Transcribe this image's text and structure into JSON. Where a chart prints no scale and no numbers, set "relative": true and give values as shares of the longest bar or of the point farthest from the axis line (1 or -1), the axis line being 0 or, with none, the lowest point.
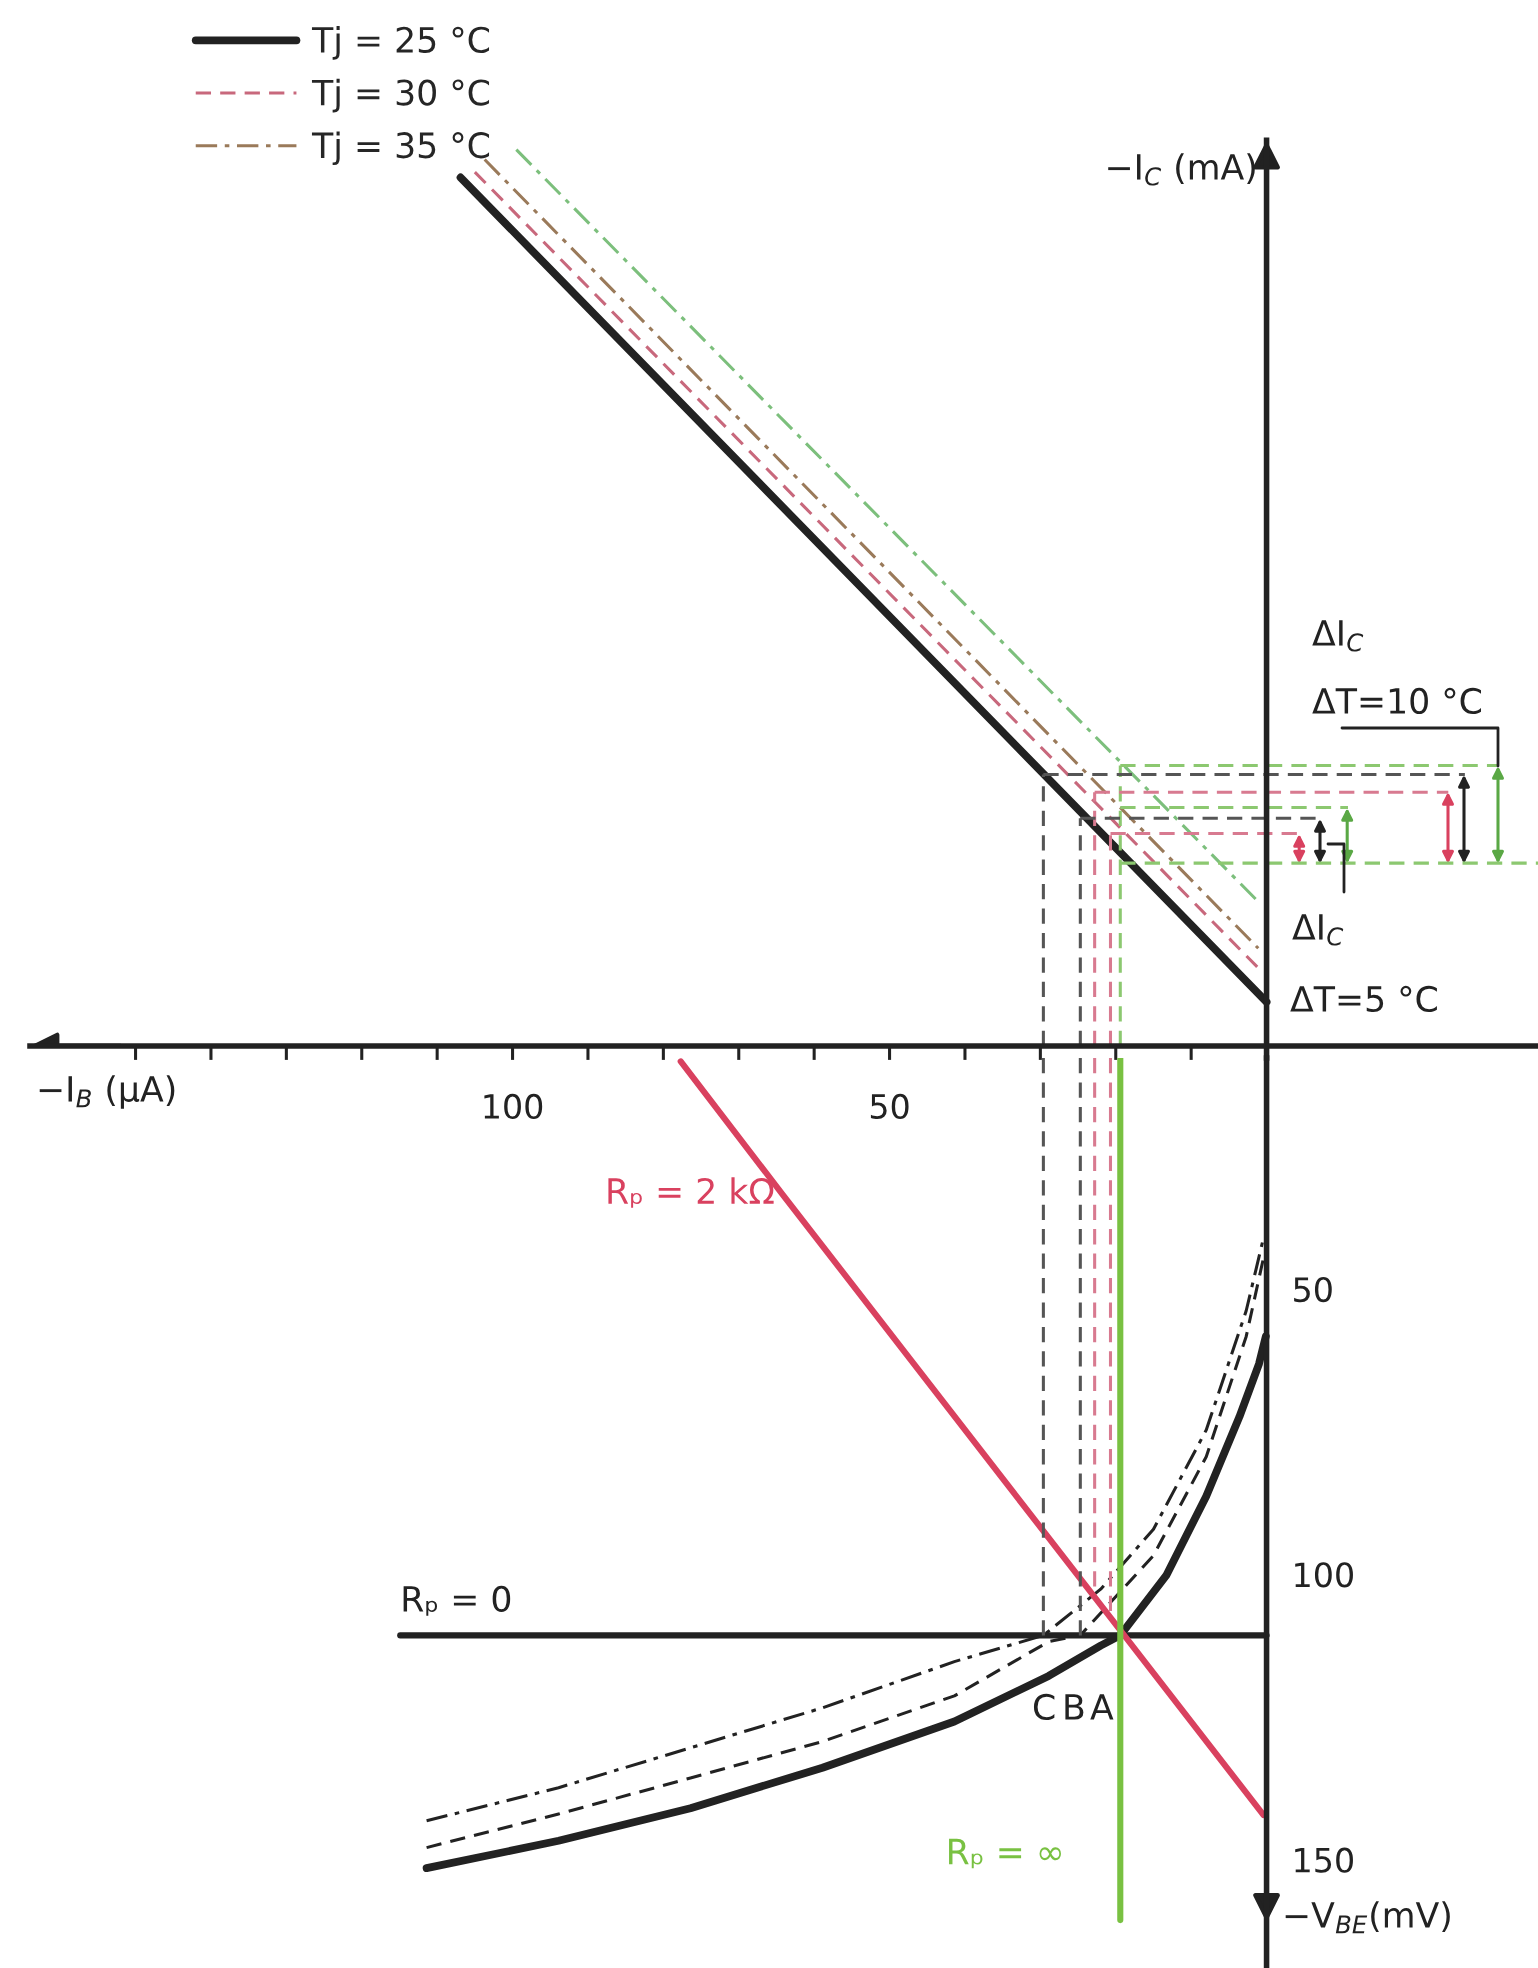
{
  "chart_data": [
    {
      "type": "line",
      "relative": true,
      "xlabel": "−I$_{B}$ (μA)",
      "ylabel": "−I$_{C}$ (mA)",
      "xlim": [
        164,
        -36
      ],
      "xticks": [
        {
          "value": 150,
          "label": null
        },
        {
          "value": 140,
          "label": null
        },
        {
          "value": 130,
          "label": null
        },
        {
          "value": 120,
          "label": null
        },
        {
          "value": 110,
          "label": null
        },
        100,
        {
          "value": 90,
          "label": null
        },
        {
          "value": 80,
          "label": null
        },
        {
          "value": 70,
          "label": null
        },
        {
          "value": 60,
          "label": null
        },
        50,
        {
          "value": 40,
          "label": null
        },
        {
          "value": 30,
          "label": null
        },
        {
          "value": 20,
          "label": null
        },
        {
          "value": 10,
          "label": null
        }
      ],
      "legend": "top left",
      "series": [
        {
          "name": "Tj = 25 °C",
          "color": "#222222",
          "line_style": "solid",
          "x": [
            106.9,
            0
          ],
          "values": [
            0.969,
            0.049
          ]
        },
        {
          "name": "Tj = 30 °C",
          "color": "#c8687c",
          "line_style": "dashed",
          "x": [
            105.0,
            1.1
          ],
          "values": [
            0.975,
            0.087
          ]
        },
        {
          "name": "Tj = 35 °C",
          "color": "#9a7a5a",
          "line_style": "dashdot",
          "x": [
            103.7,
            1.1
          ],
          "values": [
            0.989,
            0.109
          ]
        },
        {
          "color": "#7cbf7c",
          "line_style": "dashdot",
          "x": [
            99.5,
            1.1
          ],
          "values": [
            1.0,
            0.161
          ]
        },
        {
          "color": "#555555",
          "line_style": "dashed",
          "x": [
            29.6,
            29.6
          ],
          "values": [
            0,
            0.303
          ]
        },
        {
          "color": "#555555",
          "line_style": "dashed",
          "x": [
            24.7,
            24.7
          ],
          "values": [
            0,
            0.254
          ]
        },
        {
          "color": "#d87a90",
          "line_style": "dashed",
          "x": [
            22.8,
            22.8
          ],
          "values": [
            0,
            0.283
          ]
        },
        {
          "color": "#d87a90",
          "line_style": "dashed",
          "x": [
            20.7,
            20.7
          ],
          "values": [
            0,
            0.237
          ]
        },
        {
          "color": "#8cc870",
          "line_style": "dashed",
          "x": [
            19.4,
            19.4
          ],
          "values": [
            0,
            0.313
          ]
        },
        {
          "color": "#8cc870",
          "line_style": "dashed",
          "x": [
            19.4,
            -30.8
          ],
          "values": [
            0.313,
            0.313
          ]
        },
        {
          "color": "#555555",
          "line_style": "dashed",
          "x": [
            29.6,
            -26.3
          ],
          "values": [
            0.303,
            0.303
          ]
        },
        {
          "color": "#d87a90",
          "line_style": "dashed",
          "x": [
            22.8,
            -24.1
          ],
          "values": [
            0.283,
            0.283
          ]
        },
        {
          "color": "#8cc870",
          "line_style": "dashed",
          "x": [
            19.4,
            -10.8
          ],
          "values": [
            0.266,
            0.266
          ]
        },
        {
          "color": "#555555",
          "line_style": "dashed",
          "x": [
            24.7,
            -7.2
          ],
          "values": [
            0.254,
            0.254
          ]
        },
        {
          "color": "#d87a90",
          "line_style": "dashed",
          "x": [
            20.7,
            -4.4
          ],
          "values": [
            0.237,
            0.237
          ]
        },
        {
          "color": "#8cc870",
          "line_style": "dashed",
          "x": [
            19.4,
            -36
          ],
          "values": [
            0.204,
            0.204
          ]
        }
      ],
      "annotations": [
        "ΔI$_{C}$",
        "ΔT=10 °C",
        "ΔI$_{C}$",
        "ΔT=5 °C"
      ]
    },
    {
      "type": "line",
      "tick_labels": "y",
      "ylabel": "−V$_{BE}$(mV)",
      "xlim": [
        164,
        -36
      ],
      "ylim": [
        169,
        9.5
      ],
      "yticks": [
        50,
        100,
        150
      ],
      "series": [
        {
          "color": "#222222",
          "line_style": "solid",
          "x": [
            111.4,
            93.9,
            76.4,
            58.9,
            41.4,
            28.9,
            22.0,
            19.4,
            13.3,
            8.0,
            3.6,
            1.0,
            0.1
          ],
          "values": [
            151.5,
            146.7,
            141.0,
            133.9,
            125.8,
            117.8,
            112.5,
            110.7,
            100.2,
            86.3,
            72.4,
            63.1,
            58.3
          ]
        },
        {
          "color": "#222222",
          "line_style": "dashed",
          "x": [
            111.4,
            93.9,
            76.4,
            58.9,
            41.4,
            28.9,
            24.7,
            15.0,
            8.0,
            2.7,
            0.4
          ],
          "values": [
            147.9,
            142.0,
            135.7,
            129.3,
            121.3,
            111.8,
            110.7,
            96.7,
            79.4,
            58.3,
            44.5
          ]
        },
        {
          "color": "#222222",
          "line_style": "dashdot",
          "x": [
            111.4,
            93.9,
            76.4,
            58.9,
            41.4,
            29.6,
            22.0,
            15.0,
            8.0,
            2.7,
            0.4
          ],
          "values": [
            143.2,
            137.4,
            130.4,
            123.4,
            115.3,
            110.7,
            102.6,
            92.1,
            74.7,
            53.8,
            41.0
          ]
        },
        {
          "name": "Rₚ = 0",
          "color": "#222222",
          "line_style": "solid",
          "x": [
            114.9,
            0
          ],
          "values": [
            110.7,
            110.7
          ]
        },
        {
          "name": "Rₚ = 2 kΩ",
          "color": "#d9415f",
          "line_style": "solid",
          "x": [
            77.7,
            64.2,
            0.4
          ],
          "values": [
            10.1,
            33.4,
            142.2
          ]
        },
        {
          "name": "Rₚ = ∞",
          "color": "#79c142",
          "line_style": "solid",
          "x": [
            19.4,
            19.4
          ],
          "values": [
            9.5,
            160.6
          ]
        },
        {
          "color": "#555555",
          "line_style": "dashed",
          "x": [
            29.6,
            29.6
          ],
          "values": [
            9.5,
            110.7
          ]
        },
        {
          "color": "#555555",
          "line_style": "dashed",
          "x": [
            24.7,
            24.7
          ],
          "values": [
            9.5,
            110.7
          ]
        },
        {
          "color": "#d87a90",
          "line_style": "dashed",
          "x": [
            22.8,
            22.8
          ],
          "values": [
            9.5,
            103.4
          ]
        },
        {
          "color": "#d87a90",
          "line_style": "dashed",
          "x": [
            20.7,
            20.7
          ],
          "values": [
            9.5,
            107.0
          ]
        }
      ],
      "annotations": [
        "C",
        "B",
        "A"
      ]
    }
  ]
}
